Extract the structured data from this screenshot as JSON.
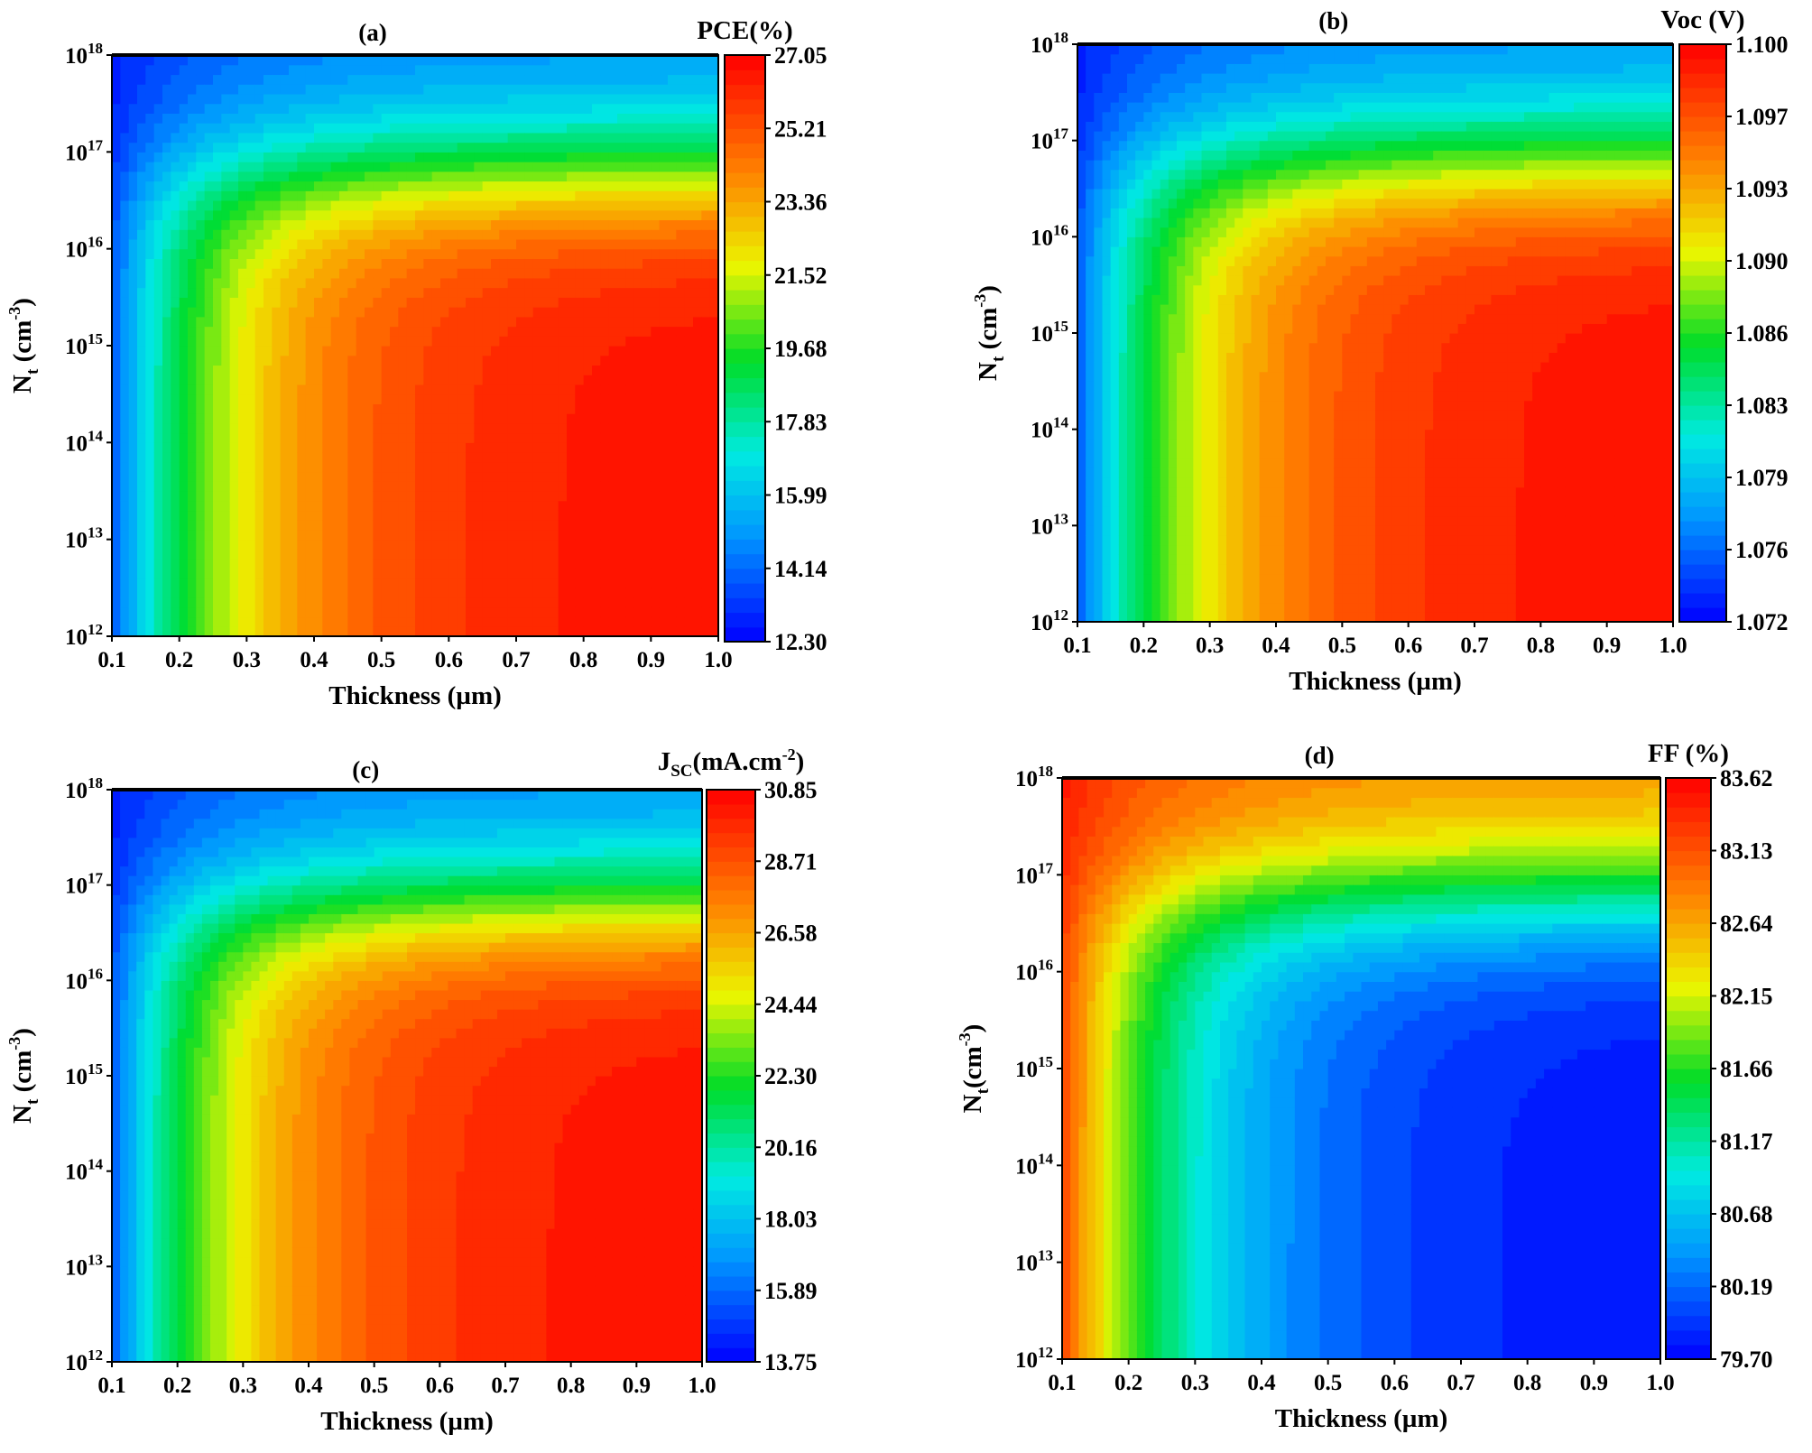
{
  "chart_data": [
    {
      "type": "heatmap",
      "title": "(a)",
      "xlabel": "Thickness (µm)",
      "ylabel": "Nt (cm-3)",
      "ylabel_main": "N",
      "ylabel_sub": "t",
      "ylabel_rest": " (cm",
      "ylabel_sup": "-3",
      "ylabel_close": ")",
      "x_ticks": [
        "0.1",
        "0.2",
        "0.3",
        "0.4",
        "0.5",
        "0.6",
        "0.7",
        "0.8",
        "0.9",
        "1.0"
      ],
      "xlim": [
        0.1,
        1.0
      ],
      "y_scale": "log",
      "ylim": [
        1000000000000.0,
        1e+18
      ],
      "y_exponents": [
        "12",
        "13",
        "14",
        "15",
        "16",
        "17",
        "18"
      ],
      "y_base": "10",
      "colorbar_title": "PCE(%)",
      "colorbar_ticks": [
        "12.30",
        "14.14",
        "15.99",
        "17.83",
        "19.68",
        "21.52",
        "23.36",
        "25.21",
        "27.05"
      ],
      "zlim": [
        12.3,
        27.05
      ],
      "colormap": "blue-to-red",
      "trend": "increasing with thickness, decreasing at high defect density"
    },
    {
      "type": "heatmap",
      "title": "(b)",
      "xlabel": "Thickness (µm)",
      "ylabel": "Nt (cm-3)",
      "ylabel_main": "N",
      "ylabel_sub": "t",
      "ylabel_rest": " (cm",
      "ylabel_sup": "-3",
      "ylabel_close": ")",
      "x_ticks": [
        "0.1",
        "0.2",
        "0.3",
        "0.4",
        "0.5",
        "0.6",
        "0.7",
        "0.8",
        "0.9",
        "1.0"
      ],
      "xlim": [
        0.1,
        1.0
      ],
      "y_scale": "log",
      "ylim": [
        1000000000000.0,
        1e+18
      ],
      "y_exponents": [
        "12",
        "13",
        "14",
        "15",
        "16",
        "17",
        "18"
      ],
      "y_base": "10",
      "colorbar_title": "Voc (V)",
      "colorbar_ticks": [
        "1.072",
        "1.076",
        "1.079",
        "1.083",
        "1.086",
        "1.090",
        "1.093",
        "1.097",
        "1.100"
      ],
      "zlim": [
        1.072,
        1.1
      ],
      "colormap": "blue-to-red",
      "trend": "increasing with thickness, decreasing at high defect density"
    },
    {
      "type": "heatmap",
      "title": "(c)",
      "xlabel": "Thickness (µm)",
      "ylabel": "Nt (cm-3)",
      "ylabel_main": "N",
      "ylabel_sub": "t",
      "ylabel_rest": " (cm",
      "ylabel_sup": "-3",
      "ylabel_close": ")",
      "x_ticks": [
        "0.1",
        "0.2",
        "0.3",
        "0.4",
        "0.5",
        "0.6",
        "0.7",
        "0.8",
        "0.9",
        "1.0"
      ],
      "xlim": [
        0.1,
        1.0
      ],
      "y_scale": "log",
      "ylim": [
        1000000000000.0,
        1e+18
      ],
      "y_exponents": [
        "12",
        "13",
        "14",
        "15",
        "16",
        "17",
        "18"
      ],
      "y_base": "10",
      "colorbar_title": "JSC(mA.cm-2)",
      "colorbar_ticks": [
        "13.75",
        "15.89",
        "18.03",
        "20.16",
        "22.30",
        "24.44",
        "26.58",
        "28.71",
        "30.85"
      ],
      "zlim": [
        13.75,
        30.85
      ],
      "colormap": "blue-to-red",
      "trend": "increasing with thickness, decreasing at high defect density"
    },
    {
      "type": "heatmap",
      "title": "(d)",
      "xlabel": "Thickness (µm)",
      "ylabel": "Nt(cm-3)",
      "ylabel_main": "N",
      "ylabel_sub": "t",
      "ylabel_rest": "(cm",
      "ylabel_sup": "-3",
      "ylabel_close": ")",
      "x_ticks": [
        "0.1",
        "0.2",
        "0.3",
        "0.4",
        "0.5",
        "0.6",
        "0.7",
        "0.8",
        "0.9",
        "1.0"
      ],
      "xlim": [
        0.1,
        1.0
      ],
      "y_scale": "log",
      "ylim": [
        1000000000000.0,
        1e+18
      ],
      "y_exponents": [
        "12",
        "13",
        "14",
        "15",
        "16",
        "17",
        "18"
      ],
      "y_base": "10",
      "colorbar_title": "FF (%)",
      "colorbar_ticks": [
        "79.70",
        "80.19",
        "80.68",
        "81.17",
        "81.66",
        "82.15",
        "82.64",
        "83.13",
        "83.62"
      ],
      "zlim": [
        79.7,
        83.62
      ],
      "colormap": "blue-to-red",
      "trend": "decreasing with thickness"
    }
  ]
}
